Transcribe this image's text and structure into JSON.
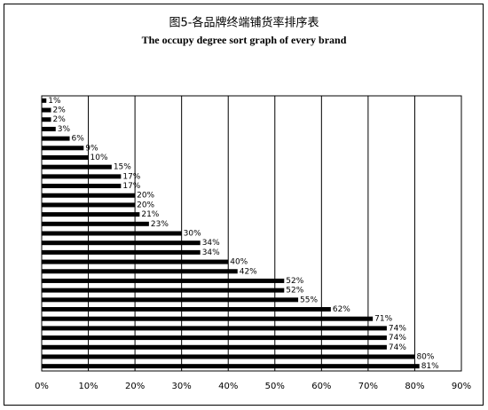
{
  "chart_data": {
    "type": "hbar",
    "title": "图5-各品牌终端铺货率排序表",
    "subtitle": "The occupy degree sort graph of every brand",
    "categories": [
      null,
      null,
      null,
      null,
      null,
      null,
      null,
      null,
      null,
      null,
      null,
      null,
      null,
      null,
      null,
      null,
      null,
      null,
      null,
      null,
      null,
      null,
      null,
      null,
      null,
      null,
      null,
      null,
      null
    ],
    "values": [
      1,
      2,
      2,
      3,
      6,
      9,
      10,
      15,
      17,
      17,
      20,
      20,
      21,
      23,
      30,
      34,
      34,
      40,
      42,
      52,
      52,
      55,
      62,
      71,
      74,
      74,
      74,
      80,
      81
    ],
    "value_labels": [
      "1%",
      "2%",
      "2%",
      "3%",
      "6%",
      "9%",
      "10%",
      "15%",
      "17%",
      "17%",
      "20%",
      "20%",
      "21%",
      "23%",
      "30%",
      "34%",
      "34%",
      "40%",
      "42%",
      "52%",
      "52%",
      "55%",
      "62%",
      "71%",
      "74%",
      "74%",
      "74%",
      "80%",
      "81%"
    ],
    "color": "#000000",
    "xlim": [
      0,
      90
    ],
    "xticks": [
      {
        "value": 0,
        "label": "0%"
      },
      {
        "value": 10,
        "label": "10%"
      },
      {
        "value": 20,
        "label": "20%"
      },
      {
        "value": 30,
        "label": "30%"
      },
      {
        "value": 40,
        "label": "40%"
      },
      {
        "value": 50,
        "label": "50%"
      },
      {
        "value": 60,
        "label": "60%"
      },
      {
        "value": 70,
        "label": "70%"
      },
      {
        "value": 80,
        "label": "80%"
      },
      {
        "value": 90,
        "label": "90%"
      }
    ],
    "grid": true
  }
}
